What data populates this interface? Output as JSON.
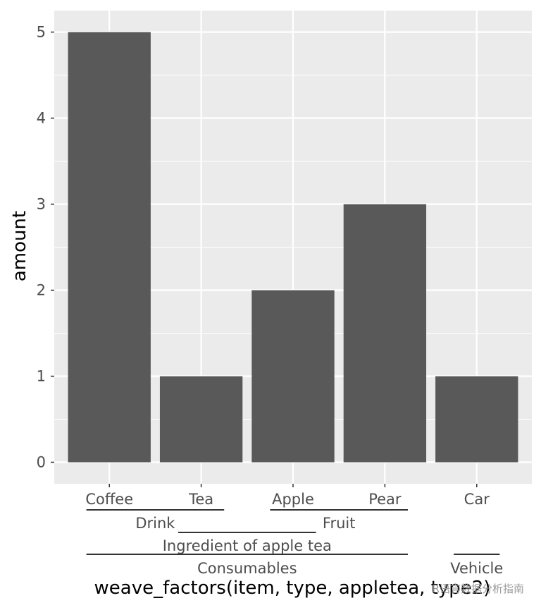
{
  "chart_data": {
    "type": "bar",
    "categories": [
      "Coffee",
      "Tea",
      "Apple",
      "Pear",
      "Car"
    ],
    "values": [
      5,
      1,
      2,
      3,
      1
    ],
    "xlabel": "weave_factors(item, type, appletea, type2)",
    "ylabel": "amount",
    "ylim": [
      -0.25,
      5.25
    ],
    "yticks": [
      0,
      1,
      2,
      3,
      4,
      5
    ],
    "grid": true,
    "bar_color": "#595959",
    "panel_background": "#ebebeb",
    "grid_color": "#ffffff",
    "nested_levels": [
      [
        {
          "label": "Drink",
          "start": "Coffee",
          "end": "Tea"
        },
        {
          "label": "Fruit",
          "start": "Apple",
          "end": "Pear"
        }
      ],
      [
        {
          "label": "Ingredient of apple tea",
          "start": "Tea",
          "end": "Apple"
        }
      ],
      [
        {
          "label": "Consumables",
          "start": "Coffee",
          "end": "Pear"
        },
        {
          "label": "Vehicle",
          "start": "Car",
          "end": "Car"
        }
      ]
    ]
  },
  "watermark": "R语言数据分析指南"
}
